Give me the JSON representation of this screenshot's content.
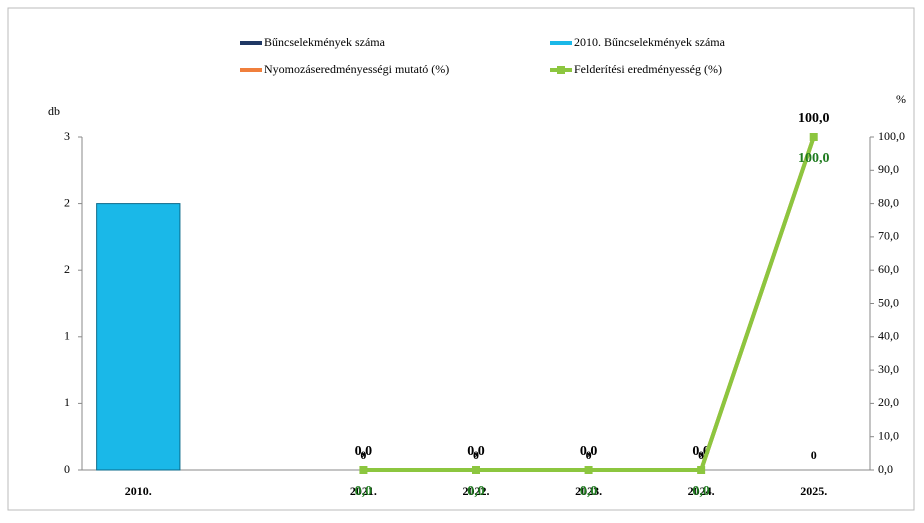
{
  "chart_data": {
    "type": "combo",
    "categories": [
      "2010.",
      null,
      "2021.",
      "2022.",
      "2023.",
      "2024.",
      "2025."
    ],
    "y_label": "db",
    "y2_label": "%",
    "ylim": [
      0,
      3
    ],
    "yticks": [
      {
        "value": 0,
        "label": "0"
      },
      {
        "value": 0.6,
        "label": "1"
      },
      {
        "value": 1.2,
        "label": "1"
      },
      {
        "value": 1.8,
        "label": "2"
      },
      {
        "value": 2.4,
        "label": "2"
      },
      {
        "value": 3,
        "label": "3"
      }
    ],
    "y2lim": [
      0,
      100
    ],
    "y2ticks": [
      {
        "value": 0,
        "label": "0,0"
      },
      {
        "value": 10,
        "label": "10,0"
      },
      {
        "value": 20,
        "label": "20,0"
      },
      {
        "value": 30,
        "label": "30,0"
      },
      {
        "value": 40,
        "label": "40,0"
      },
      {
        "value": 50,
        "label": "50,0"
      },
      {
        "value": 60,
        "label": "60,0"
      },
      {
        "value": 70,
        "label": "70,0"
      },
      {
        "value": 80,
        "label": "80,0"
      },
      {
        "value": 90,
        "label": "90,0"
      },
      {
        "value": 100,
        "label": "100,0"
      }
    ],
    "series": [
      {
        "name": "Bűncselekmények száma",
        "type": "bar",
        "color": "#1f3864",
        "values": [
          null,
          null,
          0,
          0,
          0,
          0,
          0
        ]
      },
      {
        "name": "2010. Bűncselekmények száma",
        "type": "bar",
        "color": "#1ab8e8",
        "values": [
          2.4,
          null,
          null,
          null,
          null,
          null,
          null
        ]
      },
      {
        "name": "Nyomozáseredményességi mutató (%)",
        "type": "line",
        "axis": "y2",
        "color": "#f07f3c",
        "values": [
          null,
          null,
          0,
          0,
          0,
          0,
          100
        ],
        "value_labels": [
          null,
          null,
          "0,0",
          "0,0",
          "0,0",
          "0,0",
          "100,0"
        ],
        "label_color": "#000000"
      },
      {
        "name": "Felderítési eredményesség (%)",
        "type": "line",
        "axis": "y2",
        "color": "#8cc63f",
        "values": [
          null,
          null,
          0,
          0,
          0,
          0,
          100
        ],
        "value_labels": [
          null,
          null,
          "0,0",
          "0,0",
          "0,0",
          "0,0",
          "100,0"
        ],
        "label_color": "#1e7a1e"
      }
    ]
  }
}
